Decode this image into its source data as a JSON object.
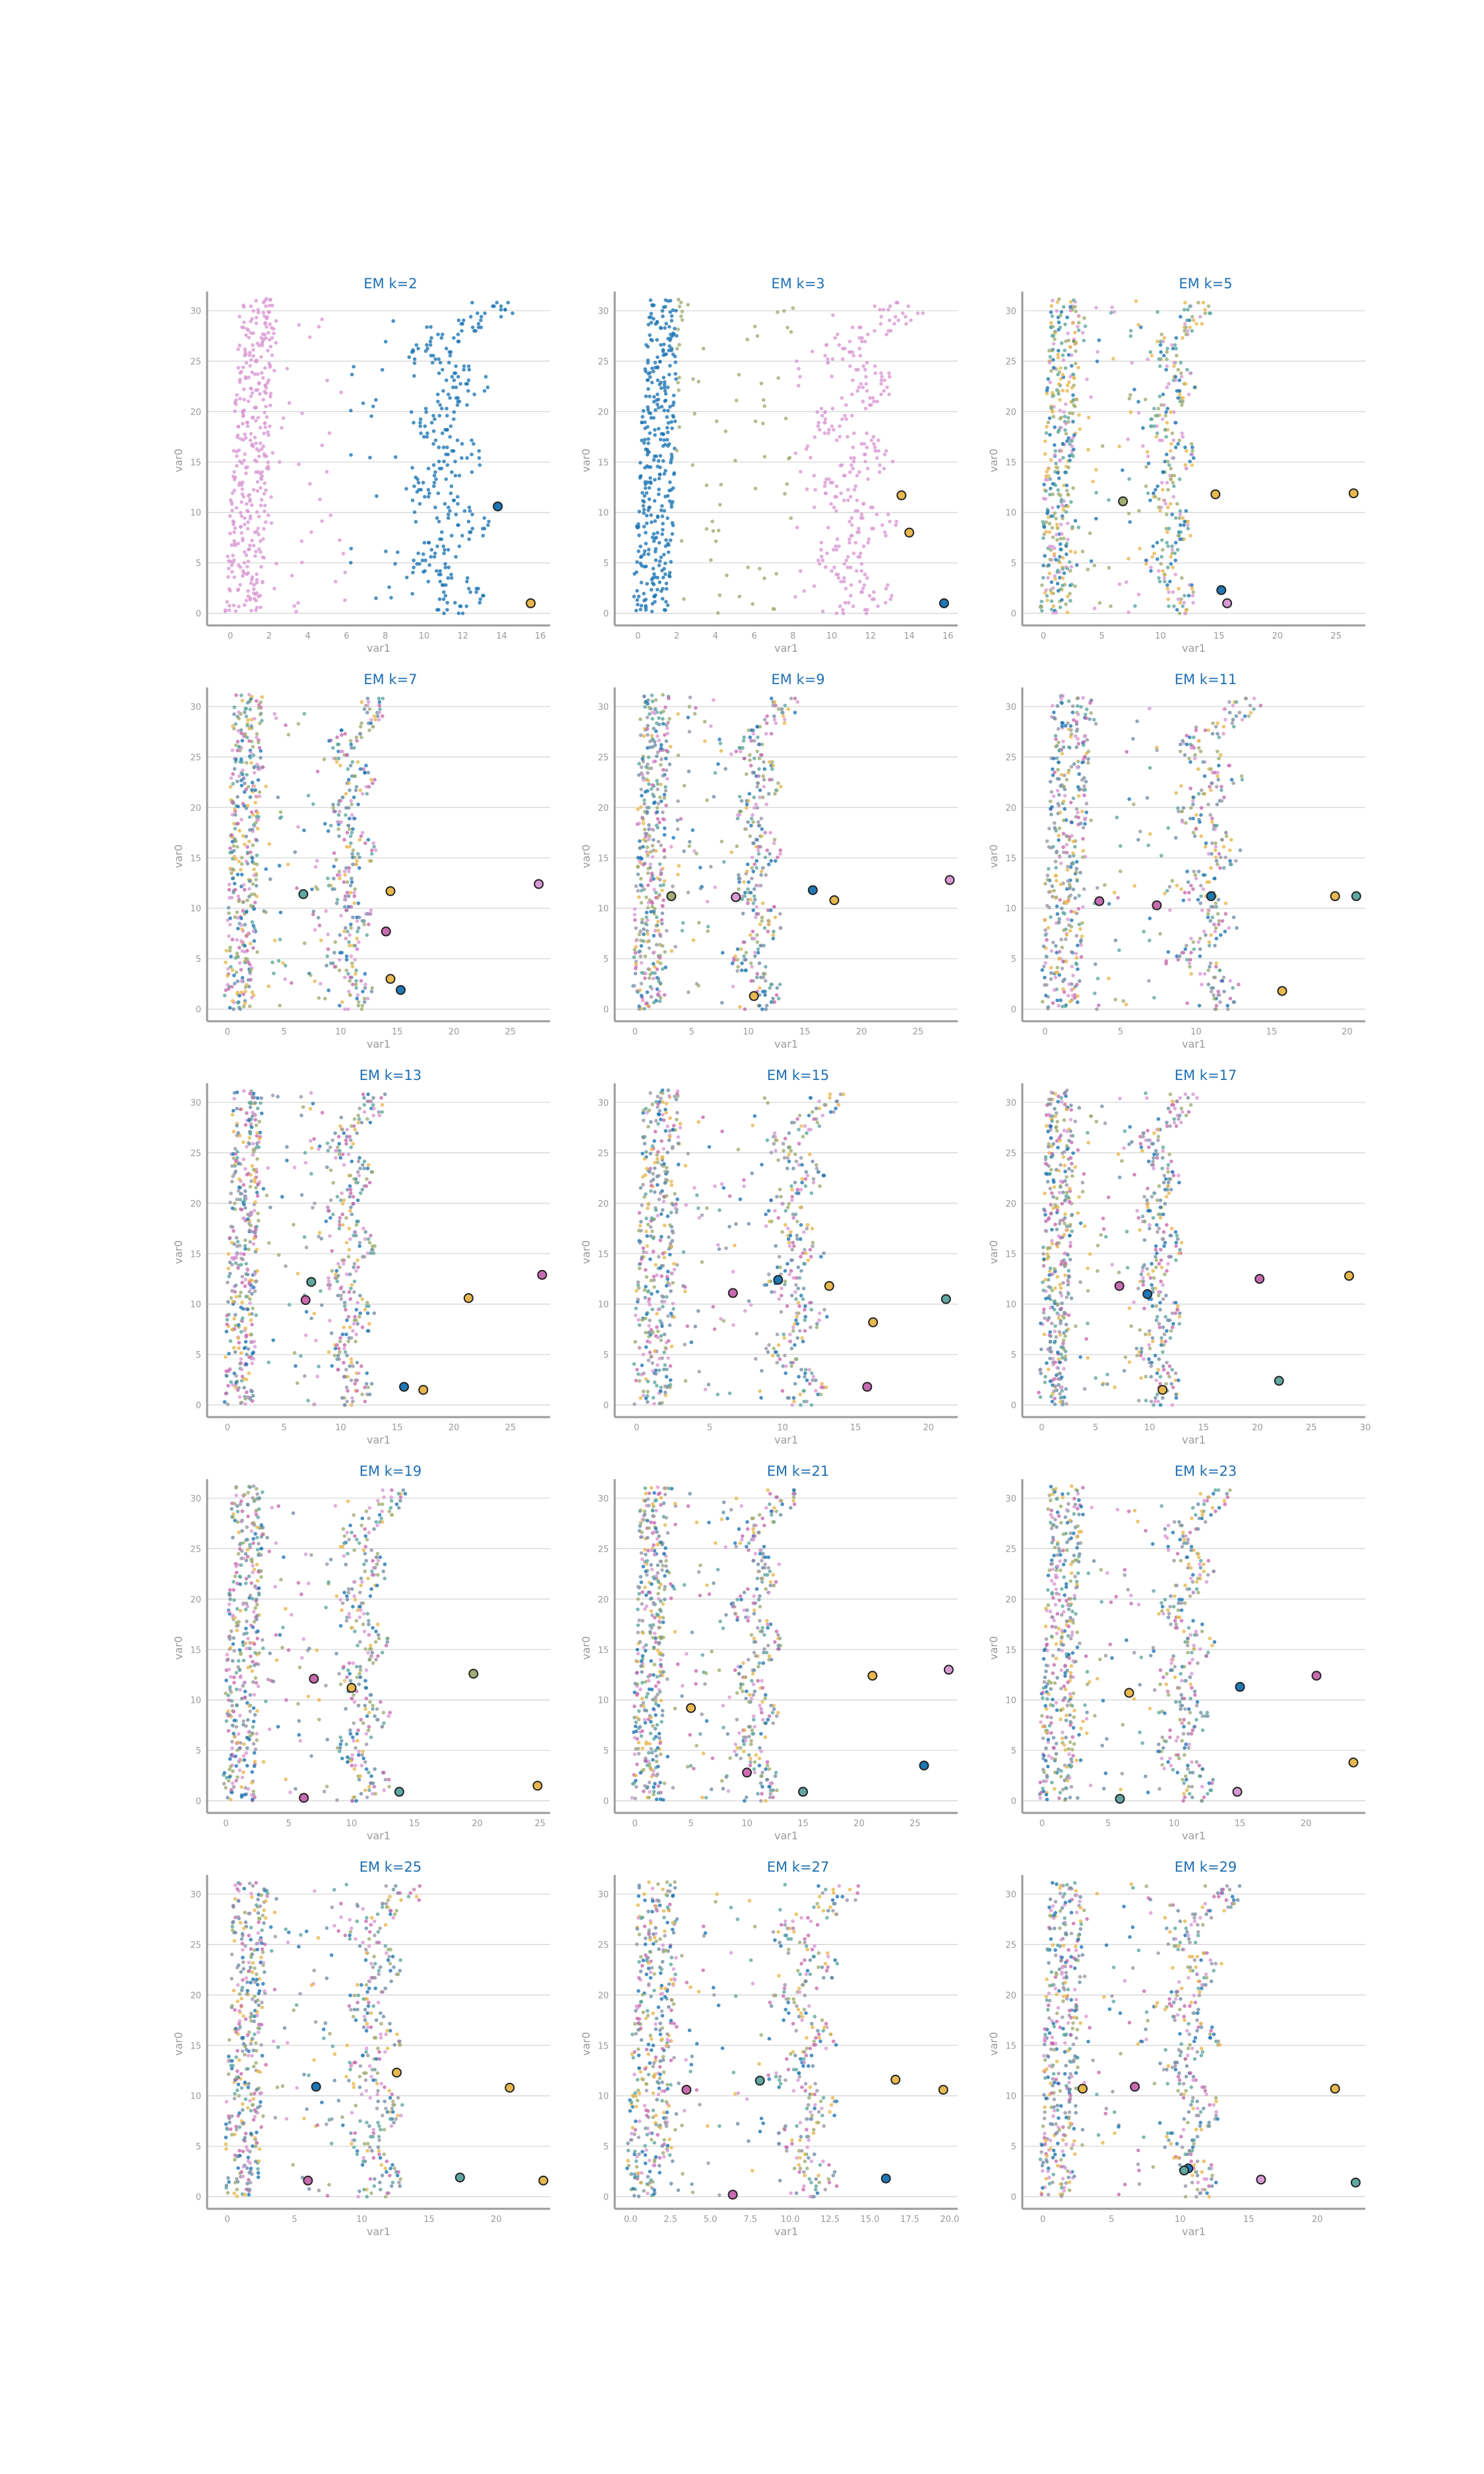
{
  "colors": {
    "palette": [
      "#1f77b4",
      "#e8b84f",
      "#d99ad4",
      "#9fae72",
      "#5fa8a0",
      "#6f8fa8",
      "#c86bb0",
      "#9a97a6"
    ],
    "title": "#1f6fb2",
    "axis": "#9a9a9a",
    "grid": "#d3d3d3",
    "centroid_edge": "#222222"
  },
  "chart_data": [
    {
      "type": "scatter",
      "title": "EM k=2",
      "xlabel": "var1",
      "ylabel": "var0",
      "k": 2,
      "xticks": [
        "0",
        "2",
        "4",
        "6",
        "8",
        "10",
        "12",
        "14",
        "16"
      ],
      "xlim": [
        -1.2,
        16.5
      ],
      "ylim": [
        -1.2,
        31.5
      ],
      "yticks": [
        "0",
        "5",
        "10",
        "15",
        "20",
        "25",
        "30"
      ],
      "centers": [
        {
          "x": 13.8,
          "y": 10.6,
          "cluster": 0
        },
        {
          "x": 15.5,
          "y": 1.0,
          "cluster": 1
        }
      ]
    },
    {
      "type": "scatter",
      "title": "EM k=3",
      "xlabel": "var1",
      "ylabel": "var0",
      "k": 3,
      "xticks": [
        "0",
        "2",
        "4",
        "6",
        "8",
        "10",
        "12",
        "14",
        "16"
      ],
      "xlim": [
        -1.2,
        16.5
      ],
      "ylim": [
        -1.2,
        31.5
      ],
      "yticks": [
        "0",
        "5",
        "10",
        "15",
        "20",
        "25",
        "30"
      ],
      "centers": [
        {
          "x": 13.6,
          "y": 11.7,
          "cluster": 1
        },
        {
          "x": 14.0,
          "y": 8.0,
          "cluster": 1
        },
        {
          "x": 15.8,
          "y": 1.0,
          "cluster": 0
        }
      ]
    },
    {
      "type": "scatter",
      "title": "EM k=5",
      "xlabel": "var1",
      "ylabel": "var0",
      "k": 5,
      "xticks": [
        "0",
        "5",
        "10",
        "15",
        "20",
        "25"
      ],
      "xlim": [
        -1.8,
        27.5
      ],
      "ylim": [
        -1.2,
        31.5
      ],
      "yticks": [
        "0",
        "5",
        "10",
        "15",
        "20",
        "25",
        "30"
      ],
      "centers": [
        {
          "x": 6.8,
          "y": 11.1,
          "cluster": 3
        },
        {
          "x": 14.7,
          "y": 11.8,
          "cluster": 1
        },
        {
          "x": 26.5,
          "y": 11.9,
          "cluster": 1
        },
        {
          "x": 15.2,
          "y": 2.3,
          "cluster": 0
        },
        {
          "x": 15.7,
          "y": 1.0,
          "cluster": 2
        }
      ]
    },
    {
      "type": "scatter",
      "title": "EM k=7",
      "xlabel": "var1",
      "ylabel": "var0",
      "k": 7,
      "xticks": [
        "0",
        "5",
        "10",
        "15",
        "20",
        "25"
      ],
      "xlim": [
        -1.8,
        28.5
      ],
      "ylim": [
        -1.2,
        31.5
      ],
      "yticks": [
        "0",
        "5",
        "10",
        "15",
        "20",
        "25",
        "30"
      ],
      "centers": [
        {
          "x": 6.7,
          "y": 11.4,
          "cluster": 4
        },
        {
          "x": 14.4,
          "y": 11.7,
          "cluster": 1
        },
        {
          "x": 27.5,
          "y": 12.4,
          "cluster": 2
        },
        {
          "x": 14.0,
          "y": 7.7,
          "cluster": 6
        },
        {
          "x": 14.4,
          "y": 3.0,
          "cluster": 1
        },
        {
          "x": 15.3,
          "y": 1.9,
          "cluster": 0
        }
      ]
    },
    {
      "type": "scatter",
      "title": "EM k=9",
      "xlabel": "var1",
      "ylabel": "var0",
      "k": 9,
      "xticks": [
        "0",
        "5",
        "10",
        "15",
        "20",
        "25"
      ],
      "xlim": [
        -1.8,
        28.5
      ],
      "ylim": [
        -1.2,
        31.5
      ],
      "yticks": [
        "0",
        "5",
        "10",
        "15",
        "20",
        "25",
        "30"
      ],
      "centers": [
        {
          "x": 3.2,
          "y": 11.2,
          "cluster": 3
        },
        {
          "x": 8.9,
          "y": 11.1,
          "cluster": 2
        },
        {
          "x": 15.7,
          "y": 11.8,
          "cluster": 0
        },
        {
          "x": 17.6,
          "y": 10.8,
          "cluster": 1
        },
        {
          "x": 27.8,
          "y": 12.8,
          "cluster": 2
        },
        {
          "x": 10.5,
          "y": 1.3,
          "cluster": 1
        }
      ]
    },
    {
      "type": "scatter",
      "title": "EM k=11",
      "xlabel": "var1",
      "ylabel": "var0",
      "k": 11,
      "xticks": [
        "0",
        "5",
        "10",
        "15",
        "20"
      ],
      "xlim": [
        -1.5,
        21.2
      ],
      "ylim": [
        -1.2,
        31.5
      ],
      "yticks": [
        "0",
        "5",
        "10",
        "15",
        "20",
        "25",
        "30"
      ],
      "centers": [
        {
          "x": 3.6,
          "y": 10.7,
          "cluster": 6
        },
        {
          "x": 7.4,
          "y": 10.3,
          "cluster": 6
        },
        {
          "x": 11.0,
          "y": 11.2,
          "cluster": 0
        },
        {
          "x": 19.2,
          "y": 11.2,
          "cluster": 1
        },
        {
          "x": 20.6,
          "y": 11.2,
          "cluster": 4
        },
        {
          "x": 15.7,
          "y": 1.8,
          "cluster": 1
        }
      ]
    },
    {
      "type": "scatter",
      "title": "EM k=13",
      "xlabel": "var1",
      "ylabel": "var0",
      "k": 13,
      "xticks": [
        "0",
        "5",
        "10",
        "15",
        "20",
        "25"
      ],
      "xlim": [
        -1.8,
        28.5
      ],
      "ylim": [
        -1.2,
        31.5
      ],
      "yticks": [
        "0",
        "5",
        "10",
        "15",
        "20",
        "25",
        "30"
      ],
      "centers": [
        {
          "x": 6.9,
          "y": 10.4,
          "cluster": 6
        },
        {
          "x": 7.4,
          "y": 12.2,
          "cluster": 4
        },
        {
          "x": 21.3,
          "y": 10.6,
          "cluster": 1
        },
        {
          "x": 27.8,
          "y": 12.9,
          "cluster": 6
        },
        {
          "x": 15.6,
          "y": 1.8,
          "cluster": 0
        },
        {
          "x": 17.3,
          "y": 1.5,
          "cluster": 1
        }
      ]
    },
    {
      "type": "scatter",
      "title": "EM k=15",
      "xlabel": "var1",
      "ylabel": "var0",
      "k": 15,
      "xticks": [
        "0",
        "5",
        "10",
        "15",
        "20"
      ],
      "xlim": [
        -1.5,
        22.0
      ],
      "ylim": [
        -1.2,
        31.5
      ],
      "yticks": [
        "0",
        "5",
        "10",
        "15",
        "20",
        "25",
        "30"
      ],
      "centers": [
        {
          "x": 6.6,
          "y": 11.1,
          "cluster": 6
        },
        {
          "x": 9.7,
          "y": 12.4,
          "cluster": 0
        },
        {
          "x": 13.2,
          "y": 11.8,
          "cluster": 1
        },
        {
          "x": 16.2,
          "y": 8.2,
          "cluster": 1
        },
        {
          "x": 21.2,
          "y": 10.5,
          "cluster": 4
        },
        {
          "x": 15.8,
          "y": 1.8,
          "cluster": 6
        }
      ]
    },
    {
      "type": "scatter",
      "title": "EM k=17",
      "xlabel": "var1",
      "ylabel": "var0",
      "k": 17,
      "xticks": [
        "0",
        "5",
        "10",
        "15",
        "20",
        "25",
        "30"
      ],
      "xlim": [
        -1.8,
        30.0
      ],
      "ylim": [
        -1.2,
        31.5
      ],
      "yticks": [
        "0",
        "5",
        "10",
        "15",
        "20",
        "25",
        "30"
      ],
      "centers": [
        {
          "x": 7.2,
          "y": 11.8,
          "cluster": 6
        },
        {
          "x": 9.8,
          "y": 11.0,
          "cluster": 0
        },
        {
          "x": 20.2,
          "y": 12.5,
          "cluster": 6
        },
        {
          "x": 28.5,
          "y": 12.8,
          "cluster": 1
        },
        {
          "x": 22.0,
          "y": 2.4,
          "cluster": 4
        },
        {
          "x": 11.2,
          "y": 1.5,
          "cluster": 1
        }
      ]
    },
    {
      "type": "scatter",
      "title": "EM k=19",
      "xlabel": "var1",
      "ylabel": "var0",
      "k": 19,
      "xticks": [
        "0",
        "5",
        "10",
        "15",
        "20",
        "25"
      ],
      "xlim": [
        -1.5,
        25.8
      ],
      "ylim": [
        -1.2,
        31.5
      ],
      "yticks": [
        "0",
        "5",
        "10",
        "15",
        "20",
        "25",
        "30"
      ],
      "centers": [
        {
          "x": 7.0,
          "y": 12.1,
          "cluster": 6
        },
        {
          "x": 10.0,
          "y": 11.2,
          "cluster": 1
        },
        {
          "x": 19.7,
          "y": 12.6,
          "cluster": 3
        },
        {
          "x": 13.8,
          "y": 0.9,
          "cluster": 4
        },
        {
          "x": 6.2,
          "y": 0.3,
          "cluster": 6
        },
        {
          "x": 24.8,
          "y": 1.5,
          "cluster": 1
        }
      ]
    },
    {
      "type": "scatter",
      "title": "EM k=21",
      "xlabel": "var1",
      "ylabel": "var0",
      "k": 21,
      "xticks": [
        "0",
        "5",
        "10",
        "15",
        "20",
        "25"
      ],
      "xlim": [
        -1.8,
        28.8
      ],
      "ylim": [
        -1.2,
        31.5
      ],
      "yticks": [
        "0",
        "5",
        "10",
        "15",
        "20",
        "25",
        "30"
      ],
      "centers": [
        {
          "x": 5.0,
          "y": 9.2,
          "cluster": 1
        },
        {
          "x": 21.2,
          "y": 12.4,
          "cluster": 1
        },
        {
          "x": 28.0,
          "y": 13.0,
          "cluster": 2
        },
        {
          "x": 25.8,
          "y": 3.5,
          "cluster": 0
        },
        {
          "x": 10.0,
          "y": 2.8,
          "cluster": 6
        },
        {
          "x": 15.0,
          "y": 0.9,
          "cluster": 4
        }
      ]
    },
    {
      "type": "scatter",
      "title": "EM k=23",
      "xlabel": "var1",
      "ylabel": "var0",
      "k": 23,
      "xticks": [
        "0",
        "5",
        "10",
        "15",
        "20"
      ],
      "xlim": [
        -1.5,
        24.5
      ],
      "ylim": [
        -1.2,
        31.5
      ],
      "yticks": [
        "0",
        "5",
        "10",
        "15",
        "20",
        "25",
        "30"
      ],
      "centers": [
        {
          "x": 6.6,
          "y": 10.7,
          "cluster": 1
        },
        {
          "x": 15.0,
          "y": 11.3,
          "cluster": 0
        },
        {
          "x": 20.8,
          "y": 12.4,
          "cluster": 6
        },
        {
          "x": 23.6,
          "y": 3.8,
          "cluster": 1
        },
        {
          "x": 14.8,
          "y": 0.9,
          "cluster": 2
        },
        {
          "x": 5.9,
          "y": 0.2,
          "cluster": 4
        }
      ]
    },
    {
      "type": "scatter",
      "title": "EM k=25",
      "xlabel": "var1",
      "ylabel": "var0",
      "k": 25,
      "xticks": [
        "0",
        "5",
        "10",
        "15",
        "20"
      ],
      "xlim": [
        -1.5,
        24.0
      ],
      "ylim": [
        -1.2,
        31.5
      ],
      "yticks": [
        "0",
        "5",
        "10",
        "15",
        "20",
        "25",
        "30"
      ],
      "centers": [
        {
          "x": 6.6,
          "y": 10.9,
          "cluster": 0
        },
        {
          "x": 12.6,
          "y": 12.3,
          "cluster": 1
        },
        {
          "x": 21.0,
          "y": 10.8,
          "cluster": 1
        },
        {
          "x": 17.3,
          "y": 1.9,
          "cluster": 4
        },
        {
          "x": 23.5,
          "y": 1.6,
          "cluster": 1
        },
        {
          "x": 6.0,
          "y": 1.6,
          "cluster": 6
        }
      ]
    },
    {
      "type": "scatter",
      "title": "EM k=27",
      "xlabel": "var1",
      "ylabel": "var0",
      "k": 27,
      "xticks": [
        "0.0",
        "2.5",
        "5.0",
        "7.5",
        "10.0",
        "12.5",
        "15.0",
        "17.5",
        "20.0"
      ],
      "xlim": [
        -1.0,
        20.5
      ],
      "ylim": [
        -1.2,
        31.5
      ],
      "yticks": [
        "0",
        "5",
        "10",
        "15",
        "20",
        "25",
        "30"
      ],
      "centers": [
        {
          "x": 3.5,
          "y": 10.6,
          "cluster": 6
        },
        {
          "x": 8.1,
          "y": 11.5,
          "cluster": 4
        },
        {
          "x": 16.6,
          "y": 11.6,
          "cluster": 1
        },
        {
          "x": 19.6,
          "y": 10.6,
          "cluster": 1
        },
        {
          "x": 16.0,
          "y": 1.8,
          "cluster": 0
        },
        {
          "x": 6.4,
          "y": 0.2,
          "cluster": 6
        }
      ]
    },
    {
      "type": "scatter",
      "title": "EM k=29",
      "xlabel": "var1",
      "ylabel": "var0",
      "k": 29,
      "xticks": [
        "0",
        "5",
        "10",
        "15",
        "20"
      ],
      "xlim": [
        -1.5,
        23.5
      ],
      "ylim": [
        -1.2,
        31.5
      ],
      "yticks": [
        "0",
        "5",
        "10",
        "15",
        "20",
        "25",
        "30"
      ],
      "centers": [
        {
          "x": 2.9,
          "y": 10.7,
          "cluster": 1
        },
        {
          "x": 6.7,
          "y": 10.9,
          "cluster": 6
        },
        {
          "x": 10.6,
          "y": 2.8,
          "cluster": 0
        },
        {
          "x": 10.3,
          "y": 2.6,
          "cluster": 4
        },
        {
          "x": 21.3,
          "y": 10.7,
          "cluster": 1
        },
        {
          "x": 15.9,
          "y": 1.7,
          "cluster": 2
        },
        {
          "x": 22.8,
          "y": 1.4,
          "cluster": 4
        }
      ]
    }
  ]
}
